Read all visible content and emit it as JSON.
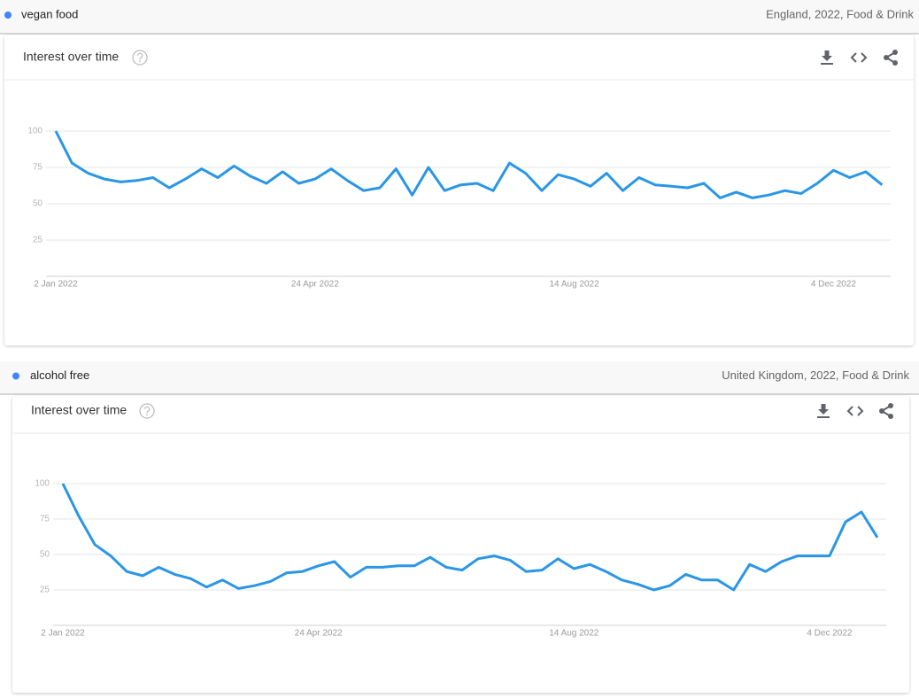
{
  "panels": [
    {
      "meta": "England, 2022, Food & Drink"
    },
    {
      "meta": "United Kingdom, 2022, Food & Drink"
    }
  ],
  "chart_data": [
    {
      "type": "line",
      "title": "Interest over time",
      "categories": [
        "2 Jan 2022",
        null,
        null,
        null,
        null,
        null,
        null,
        null,
        null,
        null,
        null,
        null,
        null,
        null,
        null,
        null,
        "24 Apr 2022",
        null,
        null,
        null,
        null,
        null,
        null,
        null,
        null,
        null,
        null,
        null,
        null,
        null,
        null,
        null,
        "14 Aug 2022",
        null,
        null,
        null,
        null,
        null,
        null,
        null,
        null,
        null,
        null,
        null,
        null,
        null,
        null,
        null,
        "4 Dec 2022",
        null,
        null,
        null
      ],
      "series": [
        {
          "name": "vegan food",
          "color": "#2a96e6",
          "values": [
            100,
            78,
            71,
            67,
            65,
            66,
            68,
            61,
            67,
            74,
            68,
            76,
            69,
            64,
            72,
            64,
            67,
            74,
            66,
            59,
            61,
            74,
            56,
            75,
            59,
            63,
            64,
            59,
            78,
            71,
            59,
            70,
            67,
            62,
            71,
            59,
            68,
            63,
            62,
            61,
            64,
            54,
            58,
            54,
            56,
            59,
            57,
            64,
            73,
            68,
            72,
            63
          ]
        }
      ],
      "ylim": [
        0,
        100
      ],
      "yticks": [
        25,
        50,
        75,
        100
      ],
      "grid": true
    },
    {
      "type": "line",
      "title": "Interest over time",
      "categories": [
        "2 Jan 2022",
        null,
        null,
        null,
        null,
        null,
        null,
        null,
        null,
        null,
        null,
        null,
        null,
        null,
        null,
        null,
        "24 Apr 2022",
        null,
        null,
        null,
        null,
        null,
        null,
        null,
        null,
        null,
        null,
        null,
        null,
        null,
        null,
        null,
        "14 Aug 2022",
        null,
        null,
        null,
        null,
        null,
        null,
        null,
        null,
        null,
        null,
        null,
        null,
        null,
        null,
        null,
        "4 Dec 2022",
        null,
        null,
        null
      ],
      "series": [
        {
          "name": "alcohol free",
          "color": "#2a96e6",
          "values": [
            100,
            77,
            57,
            49,
            38,
            35,
            41,
            36,
            33,
            27,
            32,
            26,
            28,
            31,
            37,
            38,
            42,
            45,
            34,
            41,
            41,
            42,
            42,
            48,
            41,
            39,
            47,
            49,
            46,
            38,
            39,
            47,
            40,
            43,
            38,
            32,
            29,
            25,
            28,
            36,
            32,
            32,
            25,
            43,
            38,
            45,
            49,
            49,
            49,
            73,
            80,
            62
          ]
        }
      ],
      "ylim": [
        0,
        100
      ],
      "yticks": [
        25,
        50,
        75,
        100
      ],
      "grid": true
    }
  ]
}
